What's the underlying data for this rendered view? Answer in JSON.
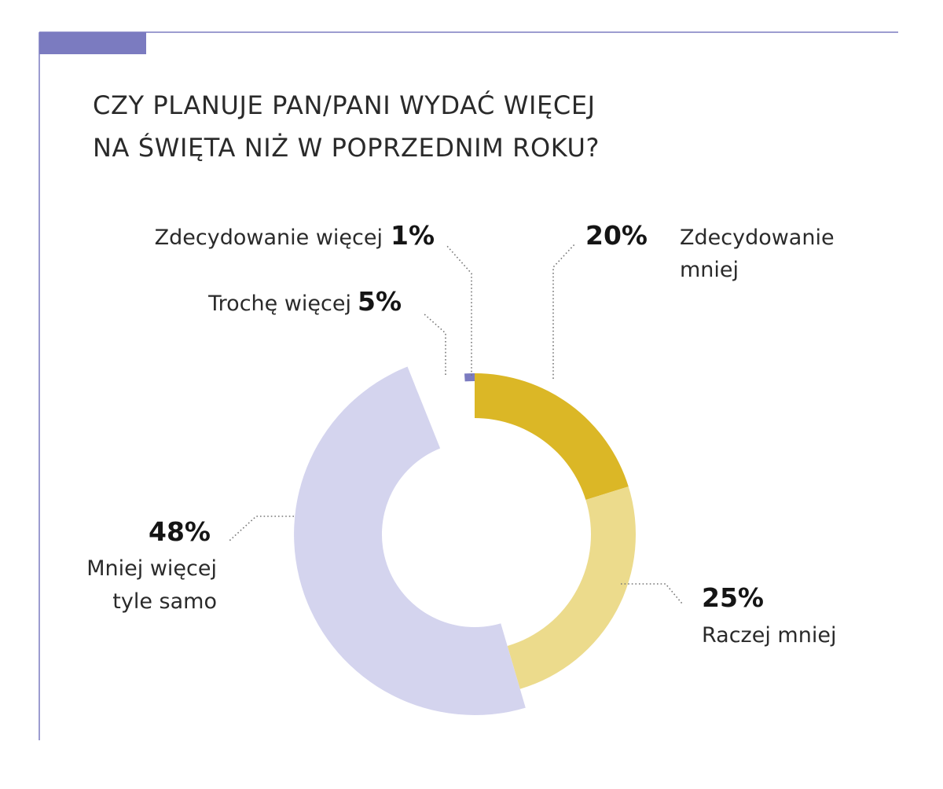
{
  "chart_data": {
    "type": "pie",
    "variant": "donut",
    "title_lines": [
      "CZY PLANUJE PAN/PANI WYDAĆ WIĘCEJ",
      "NA ŚWIĘTA NIŻ W POPRZEDNIM ROKU?"
    ],
    "unit": "%",
    "slices": [
      {
        "label_lines": [
          "Zdecydowanie",
          "mniej"
        ],
        "value": 20,
        "value_label": "20%",
        "color": "#dbb726"
      },
      {
        "label_lines": [
          "Raczej mniej"
        ],
        "value": 25,
        "value_label": "25%",
        "color": "#ecdb8c"
      },
      {
        "label_lines": [
          "Mniej więcej",
          "tyle samo"
        ],
        "value": 48,
        "value_label": "48%",
        "color": "#d4d4ee"
      },
      {
        "label_lines": [
          "Trochę więcej"
        ],
        "value": 5,
        "value_label": "5%",
        "color": "#ffffff"
      },
      {
        "label_lines": [
          "Zdecydowanie więcej"
        ],
        "value": 1,
        "value_label": "1%",
        "color": "#7b7bc0"
      }
    ],
    "frame_color": "#7b7bc0"
  }
}
